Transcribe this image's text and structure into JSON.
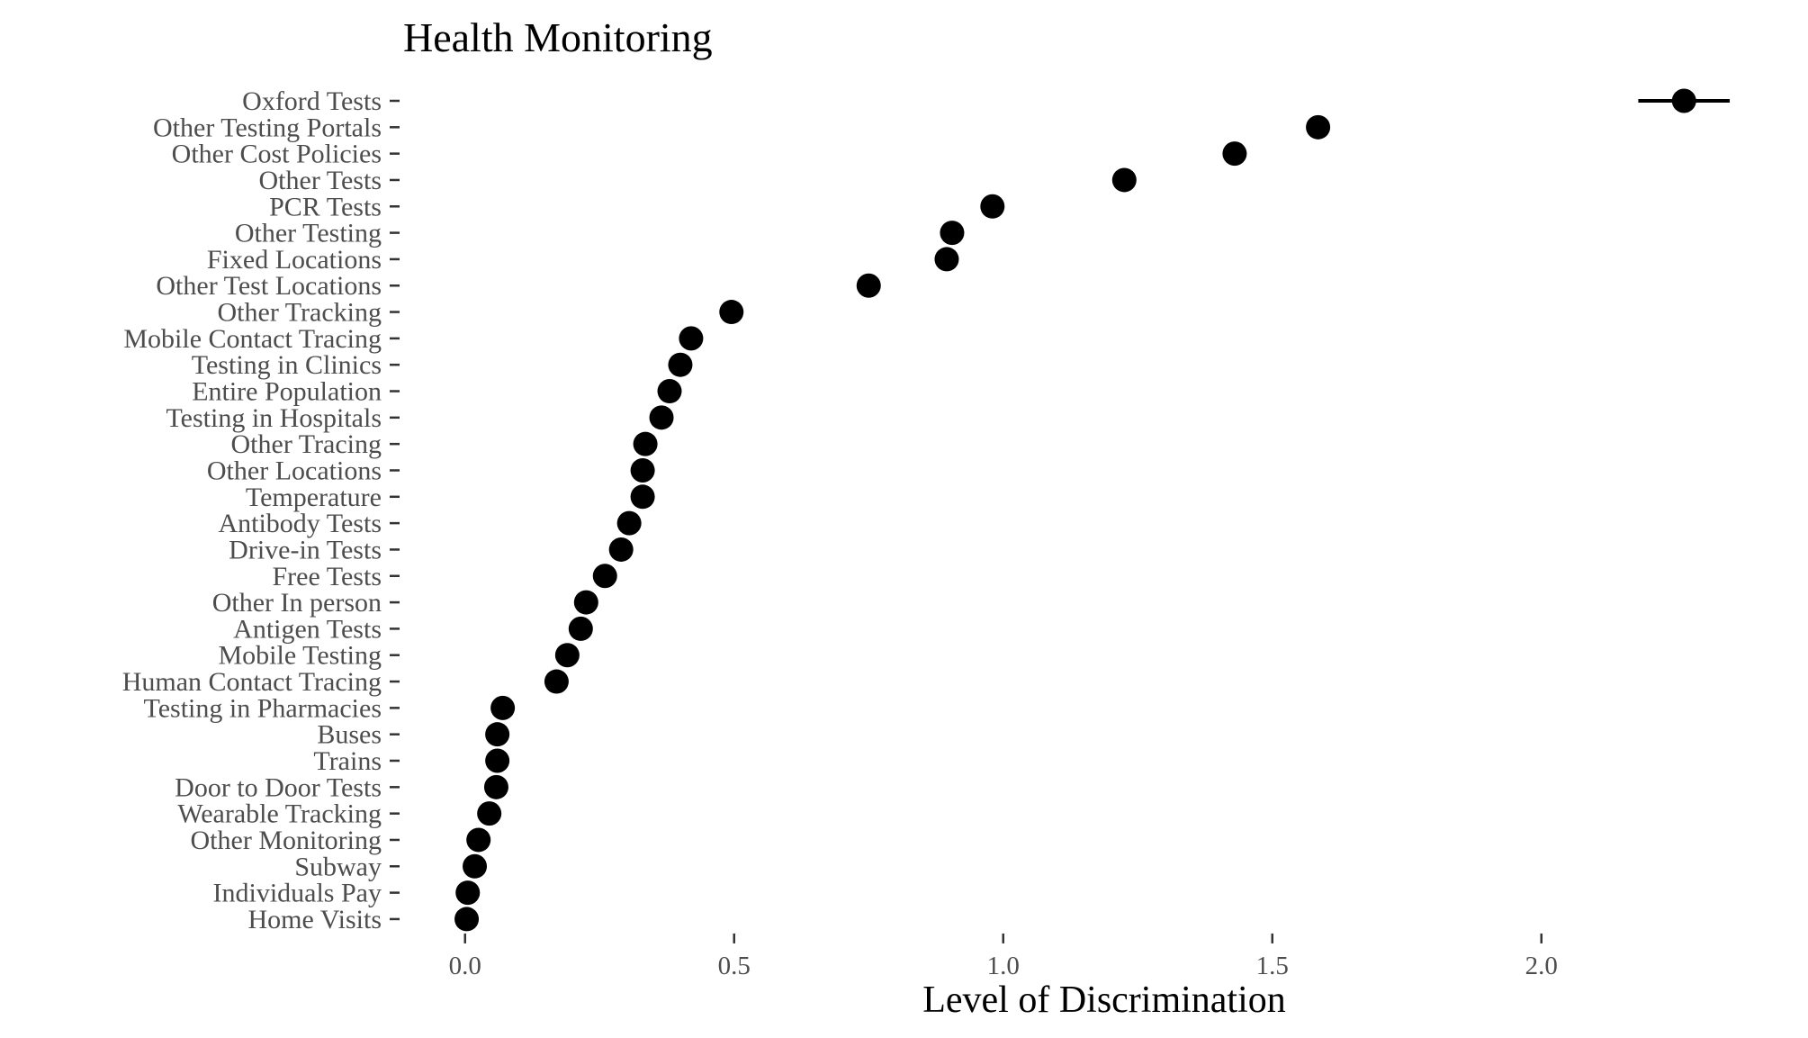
{
  "chart_data": {
    "type": "scatter",
    "title": "Health Monitoring",
    "xlabel": "Level of Discrimination",
    "ylabel": "",
    "xlim": [
      -0.12,
      2.38
    ],
    "xticks": [
      0.0,
      0.5,
      1.0,
      1.5,
      2.0
    ],
    "xtick_labels": [
      "0.0",
      "0.5",
      "1.0",
      "1.5",
      "2.0"
    ],
    "grid": false,
    "legend": "none",
    "point_color": "#000000",
    "points": [
      {
        "label": "Oxford Tests",
        "value": 2.265,
        "ci": [
          2.18,
          2.35
        ]
      },
      {
        "label": "Other Testing Portals",
        "value": 1.585
      },
      {
        "label": "Other Cost Policies",
        "value": 1.43
      },
      {
        "label": "Other Tests",
        "value": 1.225
      },
      {
        "label": "PCR Tests",
        "value": 0.98
      },
      {
        "label": "Other Testing",
        "value": 0.905
      },
      {
        "label": "Fixed Locations",
        "value": 0.895
      },
      {
        "label": "Other Test Locations",
        "value": 0.75
      },
      {
        "label": "Other Tracking",
        "value": 0.495
      },
      {
        "label": "Mobile Contact Tracing",
        "value": 0.42
      },
      {
        "label": "Testing in Clinics",
        "value": 0.4
      },
      {
        "label": "Entire Population",
        "value": 0.38
      },
      {
        "label": "Testing in Hospitals",
        "value": 0.365
      },
      {
        "label": "Other Tracing",
        "value": 0.335
      },
      {
        "label": "Other Locations",
        "value": 0.33
      },
      {
        "label": "Temperature",
        "value": 0.33
      },
      {
        "label": "Antibody Tests",
        "value": 0.305
      },
      {
        "label": "Drive-in Tests",
        "value": 0.29
      },
      {
        "label": "Free Tests",
        "value": 0.26
      },
      {
        "label": "Other In person",
        "value": 0.225
      },
      {
        "label": "Antigen Tests",
        "value": 0.215
      },
      {
        "label": "Mobile Testing",
        "value": 0.19
      },
      {
        "label": "Human Contact Tracing",
        "value": 0.17
      },
      {
        "label": "Testing in Pharmacies",
        "value": 0.07
      },
      {
        "label": "Buses",
        "value": 0.06
      },
      {
        "label": "Trains",
        "value": 0.06
      },
      {
        "label": "Door to Door Tests",
        "value": 0.058
      },
      {
        "label": "Wearable Tracking",
        "value": 0.045
      },
      {
        "label": "Other Monitoring",
        "value": 0.025
      },
      {
        "label": "Subway",
        "value": 0.018
      },
      {
        "label": "Individuals Pay",
        "value": 0.005
      },
      {
        "label": "Home Visits",
        "value": 0.003
      }
    ]
  }
}
